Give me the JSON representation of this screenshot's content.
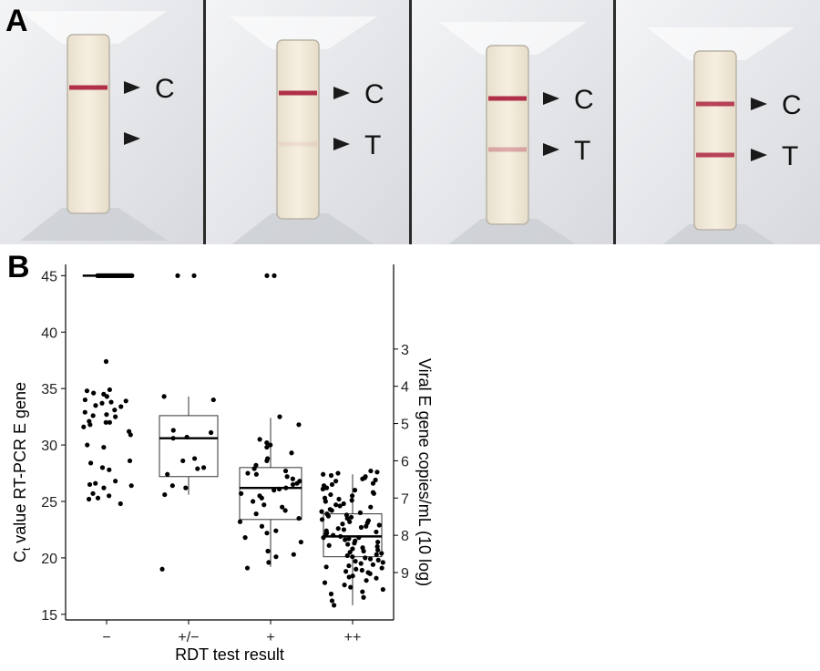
{
  "panel_a": {
    "label": "A",
    "cassettes": [
      {
        "lines": [
          "C"
        ],
        "band_strength": {
          "C": 1.0
        }
      },
      {
        "lines": [
          "C",
          "T"
        ],
        "band_strength": {
          "C": 1.0,
          "T": 0.08
        }
      },
      {
        "lines": [
          "C",
          "T"
        ],
        "band_strength": {
          "C": 1.0,
          "T": 0.35
        }
      },
      {
        "lines": [
          "C",
          "T"
        ],
        "band_strength": {
          "C": 0.9,
          "T": 0.9
        }
      }
    ],
    "colors": {
      "band": "#b0304a",
      "window": "#f4ecdc",
      "housing": "#e4e6ea"
    }
  },
  "chart_data": {
    "type": "box",
    "label": "B",
    "title": "",
    "xlabel": "RDT test result",
    "ylabel_main": "C",
    "ylabel_sub": "t",
    "ylabel_rest": " value RT-PCR E gene",
    "y2label": "Viral E gene copies/mL (10 log)",
    "categories": [
      "−",
      "+/−",
      "+",
      "++"
    ],
    "ylim": [
      14.5,
      46
    ],
    "yticks": [
      15,
      20,
      25,
      30,
      35,
      40,
      45
    ],
    "y2ticks": [
      {
        "label": "3",
        "at": 38.5
      },
      {
        "label": "4",
        "at": 35.2
      },
      {
        "label": "5",
        "at": 31.9
      },
      {
        "label": "6",
        "at": 28.6
      },
      {
        "label": "7",
        "at": 25.3
      },
      {
        "label": "8",
        "at": 22.0
      },
      {
        "label": "9",
        "at": 18.7
      }
    ],
    "boxes": [
      {
        "category": "−",
        "q1": 45,
        "median": 45,
        "q3": 45,
        "whisker_low": 45,
        "whisker_high": 45
      },
      {
        "category": "+/−",
        "q1": 27.2,
        "median": 30.6,
        "q3": 32.6,
        "whisker_low": 25.6,
        "whisker_high": 34.3
      },
      {
        "category": "+",
        "q1": 23.4,
        "median": 26.2,
        "q3": 28.0,
        "whisker_low": 19.2,
        "whisker_high": 32.4
      },
      {
        "category": "++",
        "q1": 20.1,
        "median": 21.9,
        "q3": 23.9,
        "whisker_low": 15.8,
        "whisker_high": 27.4
      }
    ],
    "points": [
      {
        "category": "−",
        "values": [
          37.4,
          34.9,
          34.8,
          34.6,
          34.5,
          34.3,
          34.0,
          33.9,
          33.8,
          33.7,
          33.5,
          33.4,
          33.1,
          32.9,
          32.7,
          32.6,
          32.5,
          32.1,
          32.0,
          32.0,
          31.8,
          31.6,
          31.2,
          30.9,
          30.0,
          29.8,
          28.6,
          28.4,
          28.0,
          27.8,
          26.8,
          26.6,
          26.5,
          26.4,
          26.2,
          25.7,
          25.5,
          25.3,
          25.2,
          24.8
        ]
      },
      {
        "category": "+/−",
        "values": [
          45,
          45,
          34.3,
          34.0,
          31.3,
          31.1,
          30.7,
          30.6,
          28.8,
          28.6,
          28.0,
          27.9,
          27.4,
          26.4,
          26.2,
          25.6,
          19.0
        ]
      },
      {
        "category": "+",
        "values": [
          45,
          45,
          32.5,
          31.8,
          30.5,
          30.2,
          30.0,
          29.8,
          29.3,
          28.8,
          28.6,
          28.2,
          27.9,
          27.7,
          27.5,
          27.4,
          27.2,
          27.0,
          26.8,
          26.6,
          26.5,
          26.2,
          26.1,
          26.0,
          25.7,
          25.5,
          25.3,
          25.0,
          24.7,
          24.5,
          24.2,
          23.9,
          23.5,
          23.2,
          22.8,
          22.4,
          22.2,
          21.8,
          21.4,
          20.6,
          20.3,
          20.1,
          19.6,
          19.1
        ]
      },
      {
        "category": "++",
        "values": [
          27.7,
          27.6,
          27.5,
          27.4,
          27.3,
          27.2,
          27.1,
          27.0,
          26.9,
          26.8,
          26.6,
          26.5,
          26.4,
          26.2,
          26.1,
          26.0,
          25.8,
          25.7,
          25.6,
          25.5,
          25.3,
          25.2,
          25.1,
          25.0,
          24.8,
          24.7,
          24.6,
          24.5,
          24.3,
          24.2,
          24.1,
          24.0,
          23.9,
          23.8,
          23.7,
          23.6,
          23.5,
          23.4,
          23.3,
          23.2,
          23.1,
          23.0,
          22.9,
          22.8,
          22.7,
          22.6,
          22.5,
          22.4,
          22.3,
          22.2,
          22.1,
          22.0,
          21.9,
          21.8,
          21.8,
          21.7,
          21.6,
          21.5,
          21.4,
          21.3,
          21.2,
          21.1,
          21.0,
          20.9,
          20.8,
          20.7,
          20.6,
          20.5,
          20.4,
          20.3,
          20.2,
          20.1,
          20.0,
          19.9,
          19.8,
          19.7,
          19.6,
          19.5,
          19.4,
          19.3,
          19.2,
          19.1,
          19.0,
          18.9,
          18.8,
          18.7,
          18.6,
          18.4,
          18.3,
          18.2,
          18.0,
          17.8,
          17.6,
          17.4,
          17.2,
          17.0,
          16.8,
          16.5,
          16.2,
          15.8
        ]
      }
    ],
    "grid": false,
    "colors": {
      "box_fill": "#ffffff",
      "box_stroke": "#333333",
      "point": "#000000",
      "axis": "#000000"
    }
  }
}
